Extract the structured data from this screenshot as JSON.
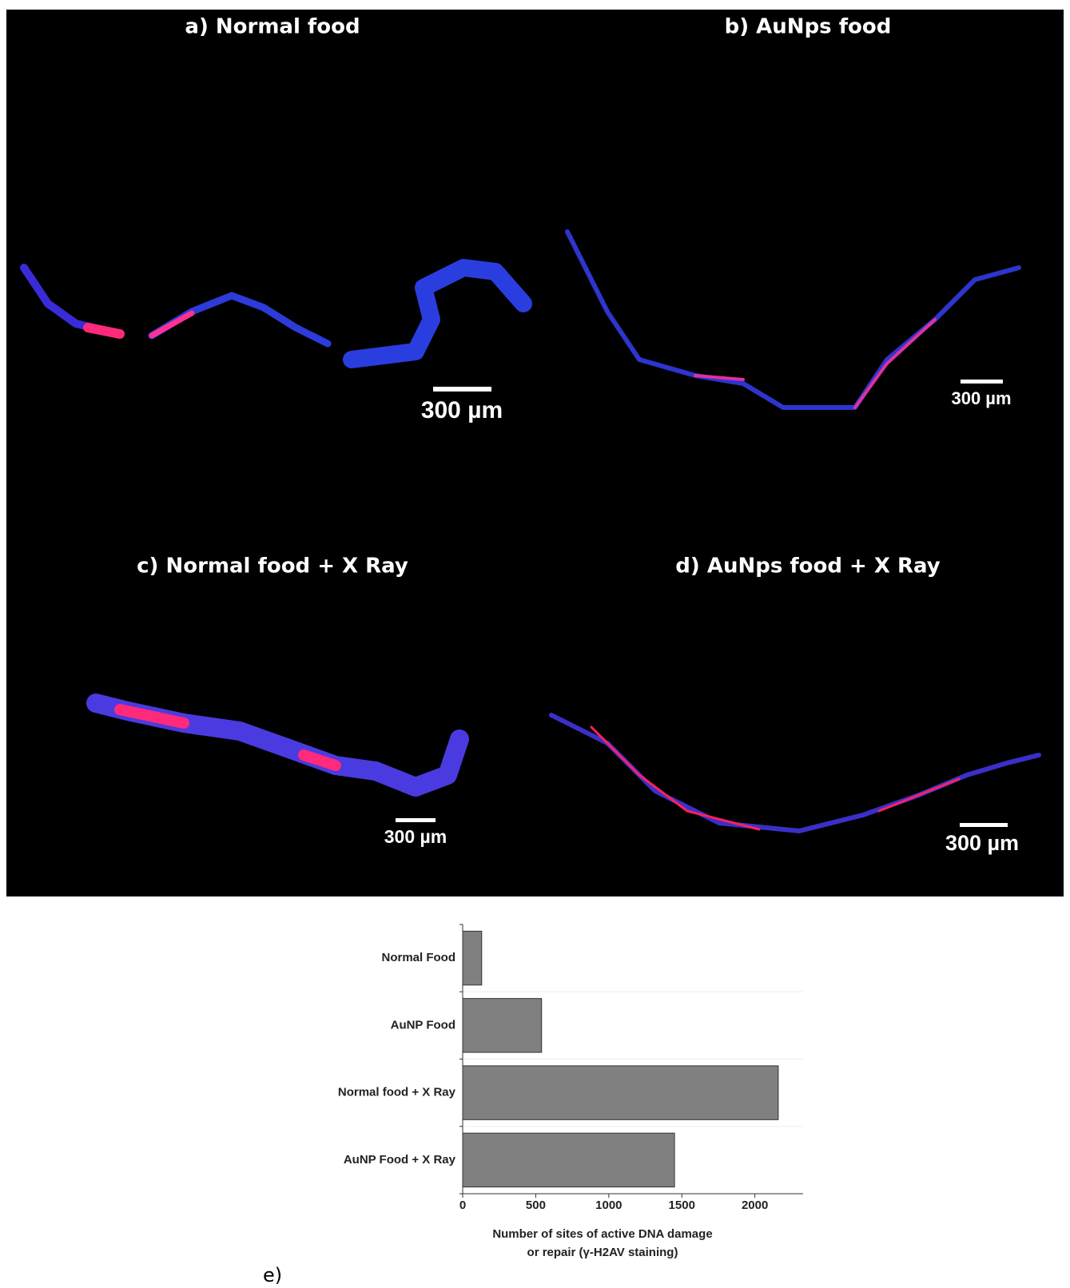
{
  "panels": [
    {
      "title": "a) Normal food",
      "scale_label": "300 µm"
    },
    {
      "title": "b) AuNps food",
      "scale_label": "300 µm"
    },
    {
      "title": "c) Normal food + X Ray",
      "scale_label": "300 µm"
    },
    {
      "title": "d) AuNps food + X Ray",
      "scale_label": "300 µm"
    }
  ],
  "chart_data": {
    "type": "bar",
    "orientation": "horizontal",
    "categories": [
      "Normal Food",
      "AuNP Food",
      "Normal food + X Ray",
      "AuNP Food + X Ray"
    ],
    "values": [
      130,
      540,
      2160,
      1450
    ],
    "color": "#808080",
    "xlim": [
      0,
      2330
    ],
    "xticks": [
      0,
      500,
      1000,
      1500,
      2000
    ],
    "xlabel": [
      "Number of sites of active DNA damage",
      "or repair (γ-H2AV staining)"
    ],
    "grid": true
  },
  "panel_label": "e)"
}
